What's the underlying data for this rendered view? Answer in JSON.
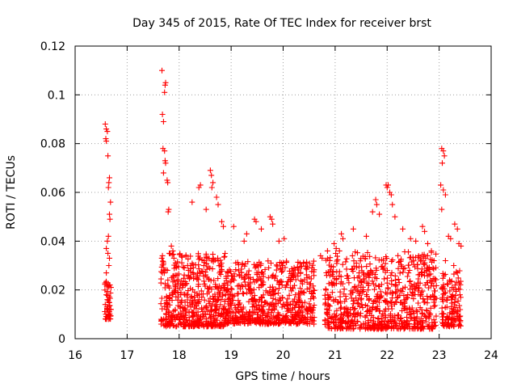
{
  "chart_data": {
    "type": "scatter",
    "title": "Day 345 of 2015, Rate Of TEC Index for receiver brst",
    "xlabel": "GPS time / hours",
    "ylabel": "ROTI / TECUs",
    "xlim": [
      16,
      24
    ],
    "ylim": [
      0,
      0.12
    ],
    "xticks": [
      16,
      17,
      18,
      19,
      20,
      21,
      22,
      23,
      24
    ],
    "xtick_labels": [
      "16",
      "17",
      "18",
      "19",
      "20",
      "21",
      "22",
      "23",
      "24"
    ],
    "yticks": [
      0,
      0.02,
      0.04,
      0.06,
      0.08,
      0.1,
      0.12
    ],
    "ytick_labels": [
      "0",
      "0.02",
      "0.04",
      "0.06",
      "0.08",
      "0.1",
      "0.12"
    ],
    "grid": true,
    "marker": "+",
    "color": "#ff0000",
    "series": [
      {
        "name": "ROTI",
        "points": [
          [
            16.58,
            0.088
          ],
          [
            16.6,
            0.086
          ],
          [
            16.62,
            0.085
          ],
          [
            16.59,
            0.082
          ],
          [
            16.6,
            0.081
          ],
          [
            16.63,
            0.075
          ],
          [
            16.66,
            0.066
          ],
          [
            16.65,
            0.064
          ],
          [
            16.64,
            0.062
          ],
          [
            16.68,
            0.056
          ],
          [
            16.66,
            0.051
          ],
          [
            16.67,
            0.049
          ],
          [
            16.64,
            0.042
          ],
          [
            16.62,
            0.04
          ],
          [
            16.6,
            0.037
          ],
          [
            16.63,
            0.035
          ],
          [
            16.66,
            0.033
          ],
          [
            16.65,
            0.03
          ],
          [
            16.6,
            0.027
          ],
          [
            16.67,
            0.022
          ],
          [
            16.69,
            0.021
          ],
          [
            16.6,
            0.018
          ],
          [
            16.62,
            0.016
          ],
          [
            16.65,
            0.015
          ],
          [
            16.61,
            0.013
          ],
          [
            16.63,
            0.012
          ],
          [
            16.66,
            0.011
          ],
          [
            16.59,
            0.01
          ],
          [
            16.62,
            0.009
          ],
          [
            16.64,
            0.008
          ],
          [
            17.67,
            0.11
          ],
          [
            17.74,
            0.105
          ],
          [
            17.73,
            0.104
          ],
          [
            17.72,
            0.101
          ],
          [
            17.68,
            0.092
          ],
          [
            17.7,
            0.089
          ],
          [
            17.69,
            0.078
          ],
          [
            17.72,
            0.077
          ],
          [
            17.73,
            0.073
          ],
          [
            17.74,
            0.072
          ],
          [
            17.7,
            0.068
          ],
          [
            17.77,
            0.065
          ],
          [
            17.78,
            0.064
          ],
          [
            17.8,
            0.053
          ],
          [
            17.79,
            0.052
          ],
          [
            17.85,
            0.038
          ],
          [
            17.88,
            0.036
          ],
          [
            17.9,
            0.033
          ],
          [
            17.68,
            0.034
          ],
          [
            17.7,
            0.031
          ],
          [
            17.72,
            0.028
          ],
          [
            18.25,
            0.056
          ],
          [
            18.38,
            0.062
          ],
          [
            18.41,
            0.063
          ],
          [
            18.52,
            0.053
          ],
          [
            18.6,
            0.069
          ],
          [
            18.62,
            0.067
          ],
          [
            18.65,
            0.064
          ],
          [
            18.63,
            0.062
          ],
          [
            18.72,
            0.058
          ],
          [
            18.75,
            0.055
          ],
          [
            18.82,
            0.048
          ],
          [
            18.85,
            0.046
          ],
          [
            19.05,
            0.046
          ],
          [
            19.45,
            0.049
          ],
          [
            19.48,
            0.048
          ],
          [
            19.75,
            0.05
          ],
          [
            19.78,
            0.049
          ],
          [
            19.8,
            0.047
          ],
          [
            19.25,
            0.04
          ],
          [
            19.3,
            0.043
          ],
          [
            19.58,
            0.045
          ],
          [
            19.92,
            0.04
          ],
          [
            20.02,
            0.041
          ],
          [
            20.72,
            0.034
          ],
          [
            20.75,
            0.033
          ],
          [
            20.98,
            0.039
          ],
          [
            21.02,
            0.037
          ],
          [
            21.12,
            0.043
          ],
          [
            21.15,
            0.041
          ],
          [
            21.35,
            0.045
          ],
          [
            21.6,
            0.042
          ],
          [
            21.72,
            0.052
          ],
          [
            21.78,
            0.057
          ],
          [
            21.8,
            0.055
          ],
          [
            21.85,
            0.051
          ],
          [
            21.98,
            0.063
          ],
          [
            22.0,
            0.062
          ],
          [
            22.02,
            0.063
          ],
          [
            22.05,
            0.06
          ],
          [
            22.08,
            0.059
          ],
          [
            22.1,
            0.055
          ],
          [
            22.15,
            0.05
          ],
          [
            22.3,
            0.045
          ],
          [
            22.45,
            0.041
          ],
          [
            22.55,
            0.04
          ],
          [
            22.68,
            0.046
          ],
          [
            22.72,
            0.044
          ],
          [
            22.78,
            0.039
          ],
          [
            22.85,
            0.036
          ],
          [
            22.9,
            0.032
          ],
          [
            23.05,
            0.078
          ],
          [
            23.08,
            0.077
          ],
          [
            23.1,
            0.075
          ],
          [
            23.06,
            0.072
          ],
          [
            23.03,
            0.063
          ],
          [
            23.08,
            0.061
          ],
          [
            23.12,
            0.059
          ],
          [
            23.05,
            0.053
          ],
          [
            23.18,
            0.042
          ],
          [
            23.22,
            0.041
          ],
          [
            23.3,
            0.047
          ],
          [
            23.35,
            0.045
          ],
          [
            23.38,
            0.039
          ],
          [
            23.42,
            0.038
          ],
          [
            23.12,
            0.032
          ],
          [
            23.28,
            0.03
          ],
          [
            23.35,
            0.027
          ],
          [
            23.2,
            0.024
          ],
          [
            23.25,
            0.021
          ],
          [
            23.4,
            0.018
          ],
          [
            23.3,
            0.015
          ],
          [
            23.15,
            0.013
          ],
          [
            23.35,
            0.011
          ],
          [
            23.25,
            0.01
          ],
          [
            23.38,
            0.009
          ],
          [
            23.18,
            0.008
          ],
          [
            23.3,
            0.007
          ]
        ]
      }
    ],
    "dense_band": [
      {
        "x0": 16.57,
        "x1": 16.69,
        "ymin": 0.008,
        "ymax": 0.024,
        "count": 40
      },
      {
        "x0": 17.65,
        "x1": 18.9,
        "ymin": 0.005,
        "ymax": 0.035,
        "count": 520
      },
      {
        "x0": 18.9,
        "x1": 20.6,
        "ymin": 0.006,
        "ymax": 0.032,
        "count": 640
      },
      {
        "x0": 20.8,
        "x1": 22.95,
        "ymin": 0.004,
        "ymax": 0.036,
        "count": 760
      },
      {
        "x0": 23.05,
        "x1": 23.42,
        "ymin": 0.005,
        "ymax": 0.028,
        "count": 120
      }
    ]
  }
}
